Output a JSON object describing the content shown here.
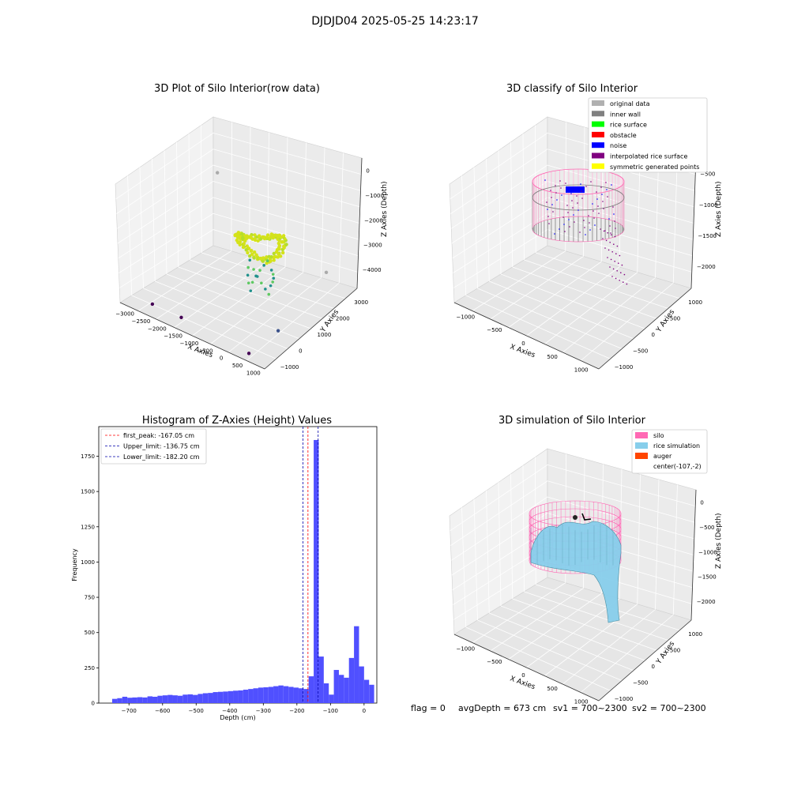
{
  "suptitle": "DJDJD04 2025-05-25 14:23:17",
  "footer": {
    "flag": "flag = 0",
    "avg": "avgDepth = 673 cm",
    "sv1": "sv1 = 700~2300",
    "sv2": "sv2 = 700~2300"
  },
  "colors": {
    "hist_bar": "#5050ff",
    "first_peak": "#ff0000",
    "limits": "#0000aa",
    "silo": "#ff69b4",
    "rice_sim": "#87ceeb",
    "auger": "#ff4500",
    "inner_wall": "#808080",
    "rice_surface": "#00ff00",
    "obstacle": "#ff0000",
    "noise": "#0000ff",
    "interp": "#800080",
    "symmetric": "#ffff00",
    "original": "#b0b0b0"
  },
  "chart_data": [
    {
      "type": "scatter",
      "title": "3D Plot of Silo Interior(row data)",
      "xlabel": "X Axies",
      "ylabel": "Y Axies",
      "zlabel": "Z Axies (Depth)",
      "xticks": [
        "−3000",
        "−2500",
        "−2000",
        "−1500",
        "−1000",
        "−500",
        "0",
        "500",
        "1000"
      ],
      "yticks": [
        "−1000",
        "0",
        "1000",
        "2000",
        "3000"
      ],
      "zticks": [
        "0",
        "−1000",
        "−2000",
        "−3000",
        "−4000"
      ],
      "xlim": [
        -3000,
        1000
      ],
      "ylim": [
        -1000,
        3000
      ],
      "zlim": [
        -4500,
        0
      ],
      "colormap": "viridis",
      "ring": {
        "center_x": -400,
        "center_y": 1000,
        "radius": 600,
        "z": -2000
      },
      "outliers": [
        {
          "x": -2500,
          "y": 2400,
          "z": -1400
        },
        {
          "x": 900,
          "y": 1800,
          "z": -2600
        },
        {
          "x": -2300,
          "y": -700,
          "z": -4300
        },
        {
          "x": -1500,
          "y": -700,
          "z": -4300
        },
        {
          "x": 600,
          "y": 200,
          "z": -4000
        },
        {
          "x": 500,
          "y": -900,
          "z": -4300
        }
      ]
    },
    {
      "type": "scatter",
      "title": "3D classify of Silo Interior",
      "xlabel": "X Axies",
      "ylabel": "Y Axies",
      "zlabel": "Z Axies (Depth)",
      "xticks": [
        "−1000",
        "−500",
        "0",
        "500",
        "1000"
      ],
      "yticks": [
        "−1000",
        "−500",
        "0",
        "500",
        "1000"
      ],
      "zticks": [
        "−500",
        "−1000",
        "−1500",
        "−2000"
      ],
      "xlim": [
        -1300,
        1100
      ],
      "ylim": [
        -1100,
        1300
      ],
      "zlim": [
        -2100,
        0
      ],
      "legend": [
        {
          "label": "original data",
          "color": "#b0b0b0"
        },
        {
          "label": "inner wall",
          "color": "#808080"
        },
        {
          "label": "rice surface",
          "color": "#00ff00"
        },
        {
          "label": "obstacle",
          "color": "#ff0000"
        },
        {
          "label": "noise",
          "color": "#0000ff"
        },
        {
          "label": "interpolated rice surface",
          "color": "#800080"
        },
        {
          "label": "symmetric generated points",
          "color": "#ffff00"
        }
      ],
      "legend_position": "top-right"
    },
    {
      "type": "bar",
      "title": "Histogram of Z-Axies (Height) Values",
      "xlabel": "Depth (cm)",
      "ylabel": "Frequency",
      "xlim": [
        -790,
        38
      ],
      "ylim": [
        0,
        1960
      ],
      "xticks": [
        -700,
        -600,
        -500,
        -400,
        -300,
        -200,
        -100,
        0
      ],
      "yticks": [
        0,
        250,
        500,
        750,
        1000,
        1250,
        1500,
        1750
      ],
      "bin_start": -750,
      "bin_width": 15,
      "values": [
        30,
        35,
        45,
        38,
        40,
        42,
        40,
        48,
        45,
        52,
        55,
        58,
        55,
        52,
        60,
        62,
        58,
        65,
        70,
        72,
        78,
        80,
        82,
        85,
        88,
        90,
        95,
        100,
        105,
        110,
        112,
        115,
        120,
        125,
        120,
        115,
        110,
        105,
        100,
        190,
        1865,
        330,
        140,
        60,
        235,
        200,
        180,
        320,
        545,
        260,
        165,
        130
      ],
      "lines": [
        {
          "label": "first_peak: -167.05 cm",
          "x": -167.05,
          "color": "#ff0000"
        },
        {
          "label": "Upper_limit: -136.75 cm",
          "x": -136.75,
          "color": "#0000aa"
        },
        {
          "label": "Lower_limit: -182.20 cm",
          "x": -182.2,
          "color": "#0000aa"
        }
      ],
      "legend_position": "top-left"
    },
    {
      "type": "surface",
      "title": "3D simulation of Silo Interior",
      "xlabel": "X Axies",
      "ylabel": "Y Axies",
      "zlabel": "Z Axies (Depth)",
      "xticks": [
        "−1000",
        "−500",
        "0",
        "500",
        "1000"
      ],
      "yticks": [
        "−1000",
        "−500",
        "0",
        "500",
        "1000"
      ],
      "zticks": [
        "0",
        "−500",
        "−1000",
        "−1500",
        "−2000"
      ],
      "xlim": [
        -1300,
        1100
      ],
      "ylim": [
        -1100,
        1300
      ],
      "zlim": [
        -2200,
        0
      ],
      "legend": [
        {
          "label": "silo",
          "color": "#ff69b4"
        },
        {
          "label": "rice simulation",
          "color": "#87ceeb"
        },
        {
          "label": "auger",
          "color": "#ff4500"
        },
        {
          "label": "center(-107,-2)",
          "color": ""
        }
      ],
      "legend_position": "top-right"
    }
  ]
}
